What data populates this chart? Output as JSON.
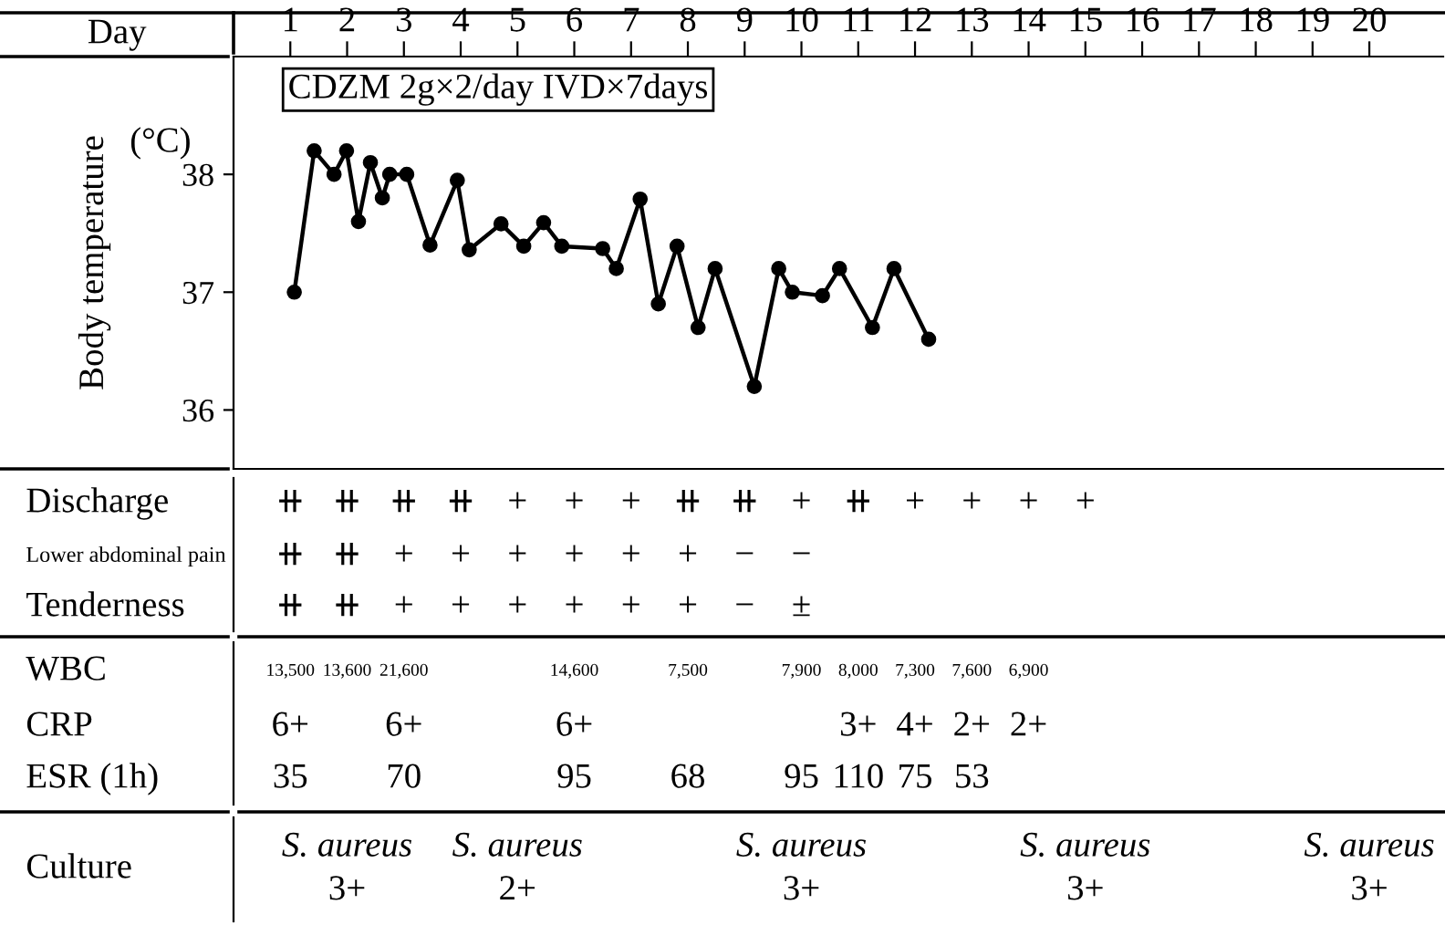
{
  "chart_data": [
    {
      "type": "line",
      "ylabel": "Body temperature",
      "xlabel": "Day",
      "color": "#000000",
      "marker": "circle",
      "line_style": "solid",
      "grid": false,
      "x": [
        1.07,
        1.42,
        1.77,
        1.99,
        2.2,
        2.41,
        2.62,
        2.75,
        3.05,
        3.46,
        3.94,
        4.15,
        4.71,
        5.11,
        5.46,
        5.78,
        6.5,
        6.74,
        7.16,
        7.48,
        7.81,
        8.18,
        8.48,
        9.17,
        9.6,
        9.84,
        10.37,
        10.67,
        11.25,
        11.63,
        12.24
      ],
      "values": [
        37.0,
        38.2,
        38.0,
        38.2,
        37.6,
        38.1,
        37.8,
        38.0,
        38.0,
        37.4,
        37.95,
        37.36,
        37.58,
        37.39,
        37.59,
        37.39,
        37.37,
        37.2,
        37.79,
        36.9,
        37.39,
        36.7,
        37.2,
        36.2,
        37.2,
        37.0,
        36.97,
        37.2,
        36.7,
        37.2,
        36.6
      ],
      "xlim": [
        0,
        21.3
      ],
      "xticks": [
        1,
        2,
        3,
        4,
        5,
        6,
        7,
        8,
        9,
        10,
        11,
        12,
        13,
        14,
        15,
        16,
        17,
        18,
        19,
        20
      ],
      "ylim": [
        35.5,
        39.0
      ],
      "yticks": [
        36,
        37,
        38
      ],
      "annotations": [
        "CDZM 2g×2/day IVD×7days",
        "(°C)"
      ]
    },
    {
      "type": "other",
      "title": "Discharge",
      "categories": [
        "⧺",
        "⧺",
        "⧺",
        "⧺",
        "+",
        "+",
        "+",
        "⧺",
        "⧺",
        "+",
        "⧺",
        "+",
        "+",
        "+",
        "+",
        null,
        null,
        null,
        null,
        null
      ]
    },
    {
      "type": "other",
      "title": "Lower abdominal pain",
      "categories": [
        "⧺",
        "⧺",
        "+",
        "+",
        "+",
        "+",
        "+",
        "+",
        "−",
        "−",
        null,
        null,
        null,
        null,
        null,
        null,
        null,
        null,
        null,
        null
      ]
    },
    {
      "type": "other",
      "title": "Tenderness",
      "categories": [
        "⧺",
        "⧺",
        "+",
        "+",
        "+",
        "+",
        "+",
        "+",
        "−",
        "±",
        null,
        null,
        null,
        null,
        null,
        null,
        null,
        null,
        null,
        null
      ]
    },
    {
      "type": "other",
      "title": "WBC",
      "categories": [
        "13,500",
        "13,600",
        "21,600",
        null,
        null,
        "14,600",
        null,
        "7,500",
        null,
        "7,900",
        "8,000",
        "7,300",
        "7,600",
        "6,900",
        null,
        null,
        null,
        null,
        null,
        null
      ]
    },
    {
      "type": "other",
      "title": "CRP",
      "categories": [
        "6+",
        null,
        "6+",
        null,
        null,
        "6+",
        null,
        null,
        null,
        null,
        "3+",
        "4+",
        "2+",
        "2+",
        null,
        null,
        null,
        null,
        null,
        null
      ]
    },
    {
      "type": "other",
      "title": "ESR (1h)",
      "categories": [
        "35",
        null,
        "70",
        null,
        null,
        "95",
        null,
        "68",
        null,
        "95",
        "110",
        "75",
        "53",
        null,
        null,
        null,
        null,
        null,
        null,
        null
      ]
    },
    {
      "type": "other",
      "title": "Culture",
      "categories": [
        null,
        "S. aureus\n3+",
        null,
        null,
        "S. aureus\n2+",
        null,
        null,
        null,
        null,
        "S. aureus\n3+",
        null,
        null,
        null,
        null,
        "S. aureus\n3+",
        null,
        null,
        null,
        null,
        "S. aureus\n3+"
      ]
    }
  ]
}
